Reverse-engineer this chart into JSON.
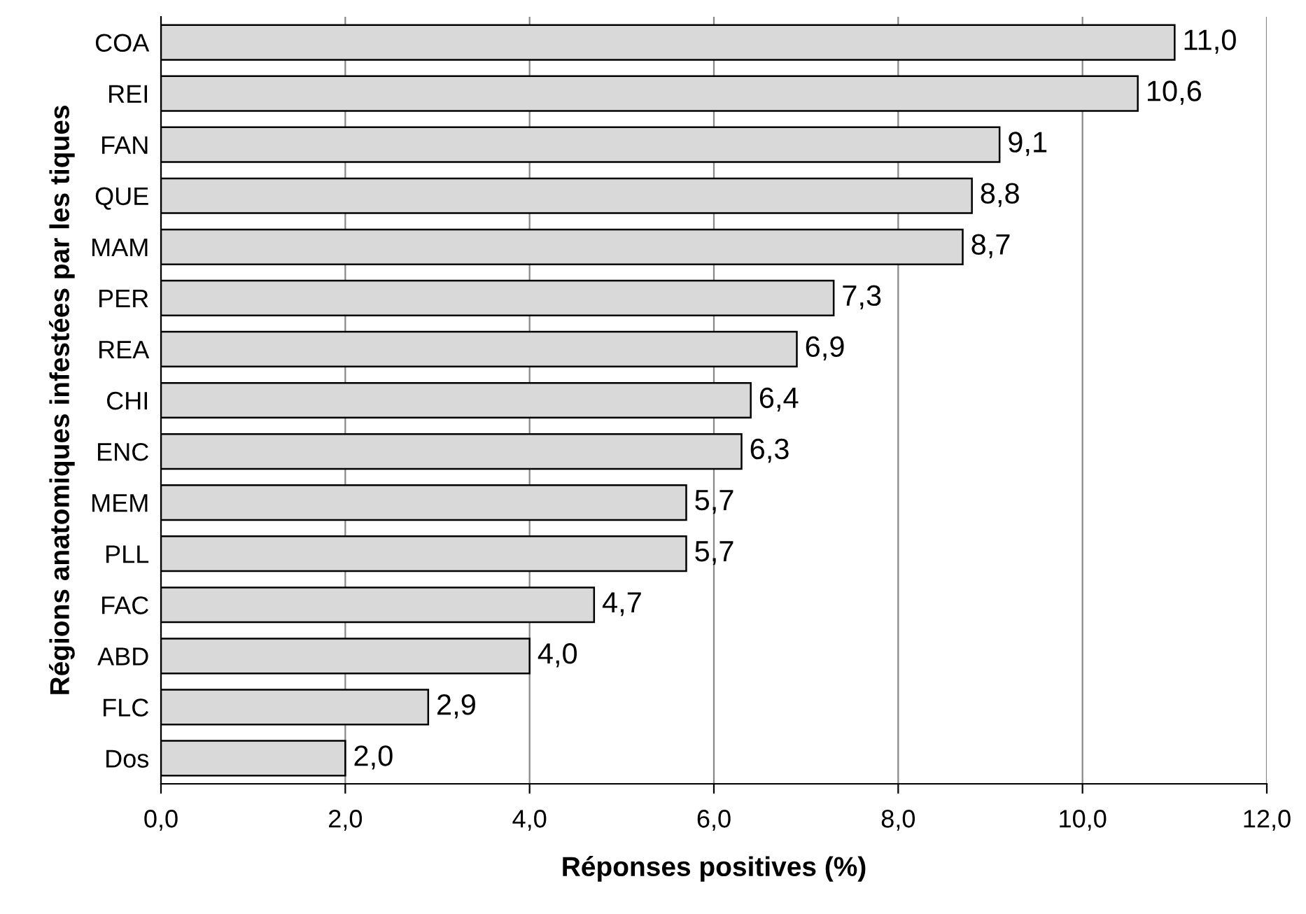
{
  "chart_data": {
    "type": "bar",
    "orientation": "horizontal",
    "xlabel": "Réponses positives (%)",
    "ylabel": "Régions anatomiques infestées par les tiques",
    "categories": [
      "COA",
      "REI",
      "FAN",
      "QUE",
      "MAM",
      "PER",
      "REA",
      "CHI",
      "ENC",
      "MEM",
      "PLL",
      "FAC",
      "ABD",
      "FLC",
      "Dos"
    ],
    "values": [
      11.0,
      10.6,
      9.1,
      8.8,
      8.7,
      7.3,
      6.9,
      6.4,
      6.3,
      5.7,
      5.7,
      4.7,
      4.0,
      2.9,
      2.0
    ],
    "value_labels": [
      "11,0",
      "10,6",
      "9,1",
      "8,8",
      "8,7",
      "7,3",
      "6,9",
      "6,4",
      "6,3",
      "5,7",
      "5,7",
      "4,7",
      "4,0",
      "2,9",
      "2,0"
    ],
    "color": "#d9d9d9",
    "xlim": [
      0,
      12
    ],
    "xticks": [
      {
        "value": 0,
        "label": "0,0"
      },
      {
        "value": 2,
        "label": "2,0"
      },
      {
        "value": 4,
        "label": "4,0"
      },
      {
        "value": 6,
        "label": "6,0"
      },
      {
        "value": 8,
        "label": "8,0"
      },
      {
        "value": 10,
        "label": "10,0"
      },
      {
        "value": 12,
        "label": "12,0"
      }
    ],
    "grid": "x"
  }
}
